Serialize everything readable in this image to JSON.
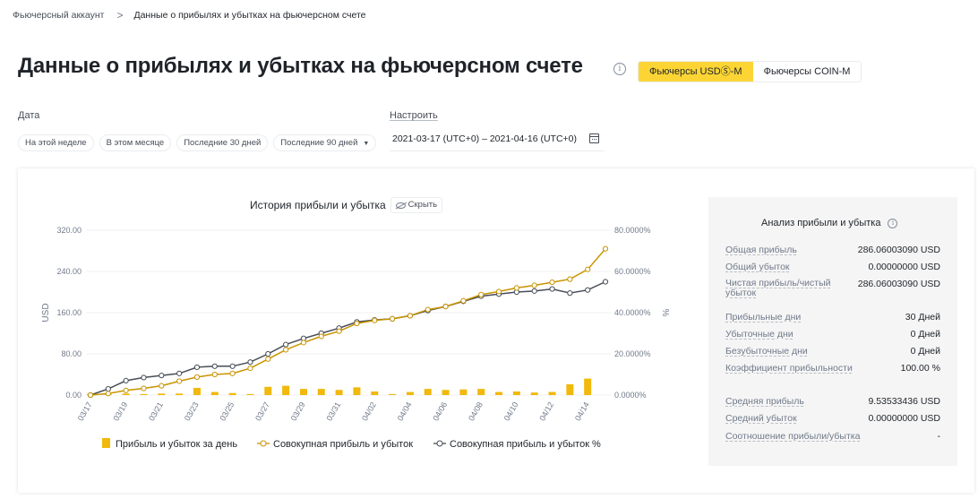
{
  "breadcrumb": {
    "parent": "Фьючерсный аккаунт",
    "separator": ">",
    "current": "Данные о прибылях и убытках на фьючерсном счете"
  },
  "page_title": "Данные о прибылях и убытках на фьючерсном счете",
  "market_tabs": [
    {
      "label": "Фьючерсы USDⓈ-M",
      "active": true
    },
    {
      "label": "Фьючерсы COIN-M",
      "active": false
    }
  ],
  "filters": {
    "date_label": "Дата",
    "custom_label": "Настроить",
    "chips": [
      "На этой неделе",
      "В этом месяце",
      "Последние 30 дней",
      "Последние 90 дней"
    ],
    "date_range": "2021-03-17 (UTC+0) – 2021-04-16 (UTC+0)"
  },
  "chart_header": {
    "title": "История прибыли и убытка",
    "hide_label": "Скрыть"
  },
  "colors": {
    "accent": "#fcd535",
    "bar": "#f0b90b",
    "cumulative_line": "#c99400",
    "percent_line": "#474d57"
  },
  "chart_data": {
    "type": "bar+line",
    "x": [
      "03/17",
      "03/18",
      "03/19",
      "03/20",
      "03/21",
      "03/22",
      "03/23",
      "03/24",
      "03/25",
      "03/26",
      "03/27",
      "03/28",
      "03/29",
      "03/30",
      "03/31",
      "04/01",
      "04/02",
      "04/03",
      "04/04",
      "04/05",
      "04/06",
      "04/07",
      "04/08",
      "04/09",
      "04/10",
      "04/11",
      "04/12",
      "04/13",
      "04/14",
      "04/15"
    ],
    "x_tick_labels": [
      "03/17",
      "03/19",
      "03/21",
      "03/23",
      "03/25",
      "03/27",
      "03/29",
      "03/31",
      "04/02",
      "04/04",
      "04/06",
      "04/08",
      "04/10",
      "04/12",
      "04/14"
    ],
    "ylabel_left": "USD",
    "ylabel_right": "%",
    "y_left_ticks": [
      "0.00",
      "80.00",
      "160.00",
      "240.00",
      "320.00"
    ],
    "y_right_ticks": [
      "0.0000%",
      "20.0000%",
      "40.0000%",
      "60.0000%",
      "80.0000%"
    ],
    "y_left_range": [
      0,
      320
    ],
    "y_right_range": [
      0,
      80
    ],
    "series": [
      {
        "name": "Прибыль и убыток за день",
        "kind": "bar",
        "axis": "left",
        "values": [
          2,
          1.5,
          3,
          2,
          3,
          3,
          14,
          6,
          4,
          2,
          16,
          18,
          12,
          12,
          10,
          15,
          7,
          2,
          6,
          12,
          10,
          11,
          12,
          6,
          7,
          5,
          6,
          21,
          32,
          0
        ]
      },
      {
        "name": "Совокупная прибыль и убыток",
        "kind": "line",
        "axis": "left",
        "values": [
          0,
          3,
          9,
          13,
          18,
          27,
          35,
          40,
          42,
          52,
          70,
          88,
          102,
          114,
          124,
          139,
          145,
          148,
          154,
          166,
          172,
          183,
          195,
          201,
          208,
          213,
          219,
          225,
          244,
          284
        ]
      },
      {
        "name": "Совокупная прибыль и убыток %",
        "kind": "line",
        "axis": "right",
        "values": [
          0,
          3,
          7,
          8.5,
          9.5,
          10.5,
          13.5,
          14,
          14,
          16,
          20,
          24.5,
          27.5,
          30,
          32.5,
          35.5,
          36.5,
          37,
          38.5,
          41,
          43,
          45.5,
          48,
          49,
          50,
          50.5,
          51.5,
          49.5,
          51,
          55
        ]
      }
    ],
    "grid": true,
    "legend_position": "bottom"
  },
  "analysis": {
    "title": "Анализ прибыли и убытка",
    "rows": [
      {
        "label": "Общая прибыль",
        "value": "286.06003090 USD"
      },
      {
        "label": "Общий убыток",
        "value": "0.00000000 USD"
      },
      {
        "label": "Чистая прибыль/чистый убыток",
        "value": "286.06003090 USD"
      },
      {
        "label": "Прибыльные дни",
        "value": "30 Дней"
      },
      {
        "label": "Убыточные дни",
        "value": "0 Дней"
      },
      {
        "label": "Безубыточные дни",
        "value": "0 Дней"
      },
      {
        "label": "Коэффициент прибыльности",
        "value": "100.00 %"
      },
      {
        "label": "Средняя прибыль",
        "value": "9.53533436 USD"
      },
      {
        "label": "Средний убыток",
        "value": "0.00000000 USD"
      },
      {
        "label": "Соотношение прибыли/убытка",
        "value": "-"
      }
    ]
  }
}
